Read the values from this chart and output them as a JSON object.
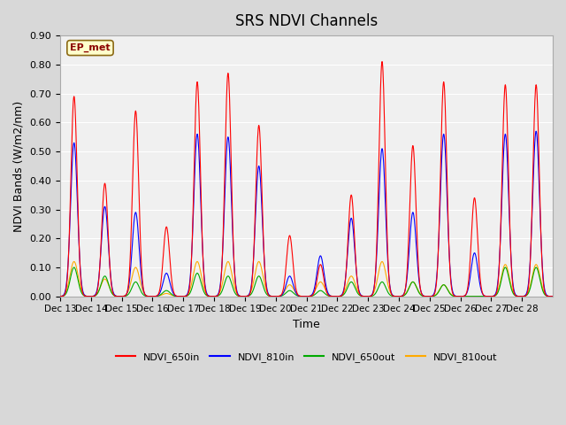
{
  "title": "SRS NDVI Channels",
  "xlabel": "Time",
  "ylabel": "NDVI Bands (W/m2/nm)",
  "annotation": "EP_met",
  "ylim": [
    0.0,
    0.9
  ],
  "yticks": [
    0.0,
    0.1,
    0.2,
    0.3,
    0.4,
    0.5,
    0.6,
    0.7,
    0.8,
    0.9
  ],
  "xtick_labels": [
    "Dec 13",
    "Dec 14",
    "Dec 15",
    "Dec 16",
    "Dec 17",
    "Dec 18",
    "Dec 19",
    "Dec 20",
    "Dec 21",
    "Dec 22",
    "Dec 23",
    "Dec 24",
    "Dec 25",
    "Dec 26",
    "Dec 27",
    "Dec 28"
  ],
  "colors": {
    "NDVI_650in": "#ff0000",
    "NDVI_810in": "#0000ff",
    "NDVI_650out": "#00aa00",
    "NDVI_810out": "#ffaa00"
  },
  "fig_bg_color": "#d8d8d8",
  "plot_bg_color": "#f0f0f0",
  "legend_labels": [
    "NDVI_650in",
    "NDVI_810in",
    "NDVI_650out",
    "NDVI_810out"
  ],
  "peaks": {
    "NDVI_650in": [
      0.69,
      0.39,
      0.64,
      0.24,
      0.74,
      0.77,
      0.59,
      0.21,
      0.11,
      0.35,
      0.81,
      0.52,
      0.74,
      0.34,
      0.73,
      0.73
    ],
    "NDVI_810in": [
      0.53,
      0.31,
      0.29,
      0.08,
      0.56,
      0.55,
      0.45,
      0.07,
      0.14,
      0.27,
      0.51,
      0.29,
      0.56,
      0.15,
      0.56,
      0.57
    ],
    "NDVI_650out": [
      0.1,
      0.07,
      0.05,
      0.02,
      0.08,
      0.07,
      0.07,
      0.02,
      0.02,
      0.05,
      0.05,
      0.05,
      0.04,
      0.0,
      0.1,
      0.1
    ],
    "NDVI_810out": [
      0.12,
      0.06,
      0.1,
      0.01,
      0.12,
      0.12,
      0.12,
      0.04,
      0.05,
      0.07,
      0.12,
      0.05,
      0.04,
      0.0,
      0.11,
      0.11
    ]
  },
  "n_days": 16,
  "points_per_day": 100
}
